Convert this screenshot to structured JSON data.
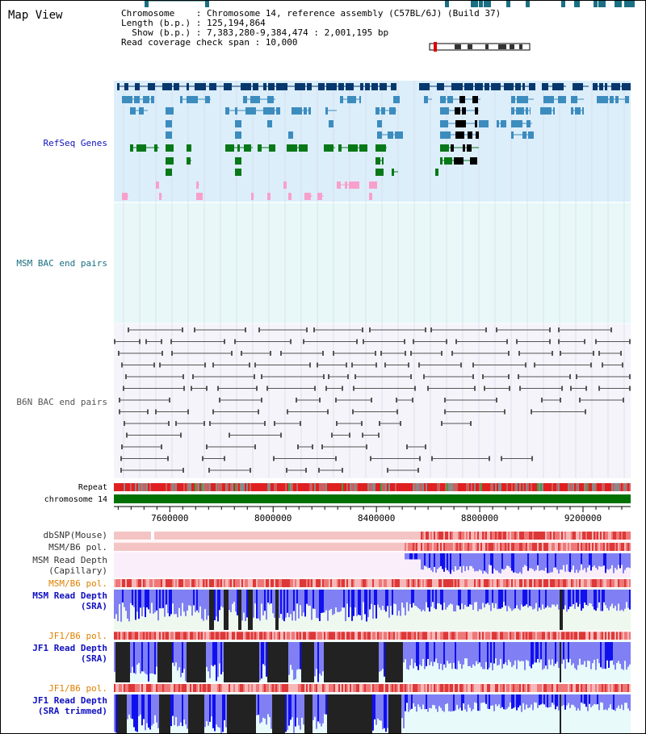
{
  "title": "Map View",
  "info": {
    "line1": "Chromosome    : Chromosome 14, reference assembly (C57BL/6J) (Build 37)",
    "line2": "Length (b.p.) : 125,194,864",
    "line3": "  Show (b.p.) : 7,383,280-9,384,474 : 2,001,195 bp",
    "line4": "Read coverage check span : 10,000"
  },
  "tracks": {
    "refseq": "RefSeq Genes",
    "msm_bac": "MSM BAC end pairs",
    "b6n_bac": "B6N BAC end pairs",
    "repeat": "Repeat",
    "chromosome": "chromosome 14",
    "dbsnp": "dbSNP(Mouse)",
    "msm_b6_pol1": "MSM/B6 pol.",
    "msm_depth_cap_1": "MSM Read Depth",
    "msm_depth_cap_2": "(Capillary)",
    "msm_b6_pol2": "MSM/B6 pol.",
    "msm_depth_sra_1": "MSM Read Depth",
    "msm_depth_sra_2": "(SRA)",
    "jf1_b6_pol1": "JF1/B6 pol.",
    "jf1_depth_sra_1": "JF1 Read Depth",
    "jf1_depth_sra_2": "(SRA)",
    "jf1_b6_pol2": "JF1/B6 pol.",
    "jf1_depth_trim_1": "JF1 Read Depth",
    "jf1_depth_trim_2": "(SRA trimmed)"
  },
  "axis": {
    "ticks": [
      "7600000",
      "8000000",
      "8400000",
      "8800000",
      "9200000"
    ],
    "tick_values": [
      7600000,
      8000000,
      8400000,
      8800000,
      9200000
    ],
    "start": 7383280,
    "end": 9384474
  },
  "colors": {
    "refseq_bg": "#dceefa",
    "msm_bac_bg": "#e8f8f8",
    "b6n_bac_bg": "#f4f4fa",
    "gene_dark": "#06386e",
    "gene_mid": "#3c8cbe",
    "gene_green": "#087818",
    "gene_pink": "#f8a0cc",
    "msm_bac_line": "#1a6f82",
    "b6n_bac_line": "#555555",
    "chromosome": "#007000",
    "snp_pink": "#f4c4c4",
    "snp_red": "#e04040",
    "depth_blue": "#1010ee",
    "depth_light": "#8080f4",
    "depth_black": "#222222",
    "label_blue": "#1010c0",
    "label_orange": "#e08000"
  }
}
